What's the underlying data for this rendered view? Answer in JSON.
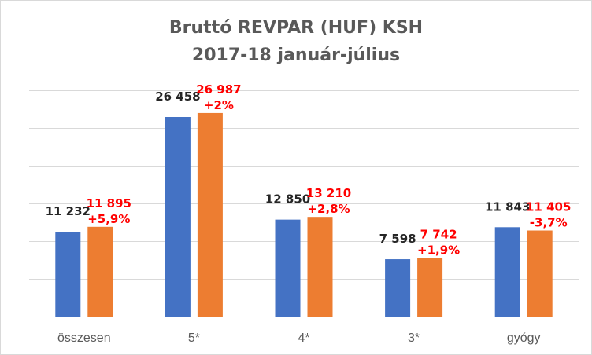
{
  "chart_data": {
    "type": "bar",
    "title": "Bruttó REVPAR (HUF) KSH",
    "subtitle": "2017-18 január-július",
    "categories": [
      "összesen",
      "5*",
      "4*",
      "3*",
      "gyógy"
    ],
    "series": [
      {
        "values": [
          11232,
          26458,
          12850,
          7598,
          11843
        ],
        "labels": [
          "11 232",
          "26 458",
          "12 850",
          "7 598",
          "11 843"
        ],
        "color": "#4472c4",
        "label_color": "#262626"
      },
      {
        "values": [
          11895,
          26987,
          13210,
          7742,
          11405
        ],
        "labels": [
          "11 895",
          "26 987",
          "13 210",
          "7 742",
          "11 405"
        ],
        "changes": [
          "+5,9%",
          "+2%",
          "+2,8%",
          "+1,9%",
          "-3,7%"
        ],
        "color": "#ed7d31",
        "label_color": "#ff0000"
      }
    ],
    "ylim": [
      0,
      30000
    ],
    "grid": true,
    "gridline_color": "#d9d9d9"
  }
}
